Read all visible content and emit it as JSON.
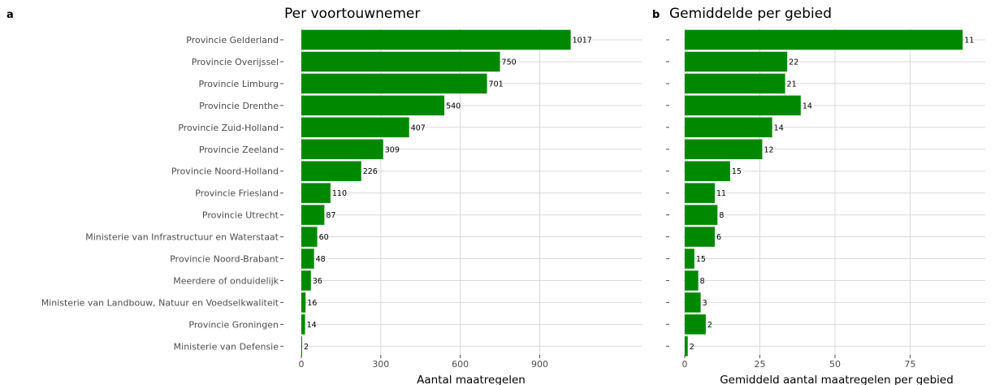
{
  "bar_color": "#008800",
  "chart_data": [
    {
      "type": "bar",
      "orientation": "horizontal",
      "panel": "a",
      "title": "Per voortouwnemer",
      "xlabel": "Aantal maatregelen",
      "ylabel": "",
      "xlim": [
        0,
        1285
      ],
      "xticks": [
        0,
        300,
        600,
        900
      ],
      "grid": true,
      "categories": [
        "Provincie Gelderland",
        "Provincie Overijssel",
        "Provincie Limburg",
        "Provincie Drenthe",
        "Provincie Zuid-Holland",
        "Provincie Zeeland",
        "Provincie Noord-Holland",
        "Provincie Friesland",
        "Provincie Utrecht",
        "Ministerie van Infrastructuur en Waterstaat",
        "Provincie Noord-Brabant",
        "Meerdere of onduidelijk",
        "Ministerie van Landbouw, Natuur en Voedselkwaliteit",
        "Provincie Groningen",
        "Ministerie van Defensie"
      ],
      "values": [
        1017,
        750,
        701,
        540,
        407,
        309,
        226,
        110,
        87,
        60,
        48,
        36,
        16,
        14,
        2
      ],
      "data_labels": [
        "1017",
        "750",
        "701",
        "540",
        "407",
        "309",
        "226",
        "110",
        "87",
        "60",
        "48",
        "36",
        "16",
        "14",
        "2"
      ]
    },
    {
      "type": "bar",
      "orientation": "horizontal",
      "panel": "b",
      "title": "Gemiddelde per gebied",
      "xlabel": "Gemiddeld aantal maatregelen per gebied",
      "ylabel": "",
      "xlim": [
        0,
        100
      ],
      "xticks": [
        0,
        25,
        50,
        75
      ],
      "grid": true,
      "categories": [
        "Provincie Gelderland",
        "Provincie Overijssel",
        "Provincie Limburg",
        "Provincie Drenthe",
        "Provincie Zuid-Holland",
        "Provincie Zeeland",
        "Provincie Noord-Holland",
        "Provincie Friesland",
        "Provincie Utrecht",
        "Ministerie van Infrastructuur en Waterstaat",
        "Provincie Noord-Brabant",
        "Meerdere of onduidelijk",
        "Ministerie van Landbouw, Natuur en Voedselkwaliteit",
        "Provincie Groningen",
        "Ministerie van Defensie"
      ],
      "values": [
        92.5,
        34.1,
        33.4,
        38.6,
        29.1,
        25.8,
        15.1,
        10.0,
        10.9,
        10.0,
        3.2,
        4.5,
        5.3,
        7.0,
        1.0
      ],
      "data_labels": [
        "11",
        "22",
        "21",
        "14",
        "14",
        "12",
        "15",
        "11",
        "8",
        "6",
        "15",
        "8",
        "3",
        "2",
        "2"
      ]
    }
  ]
}
